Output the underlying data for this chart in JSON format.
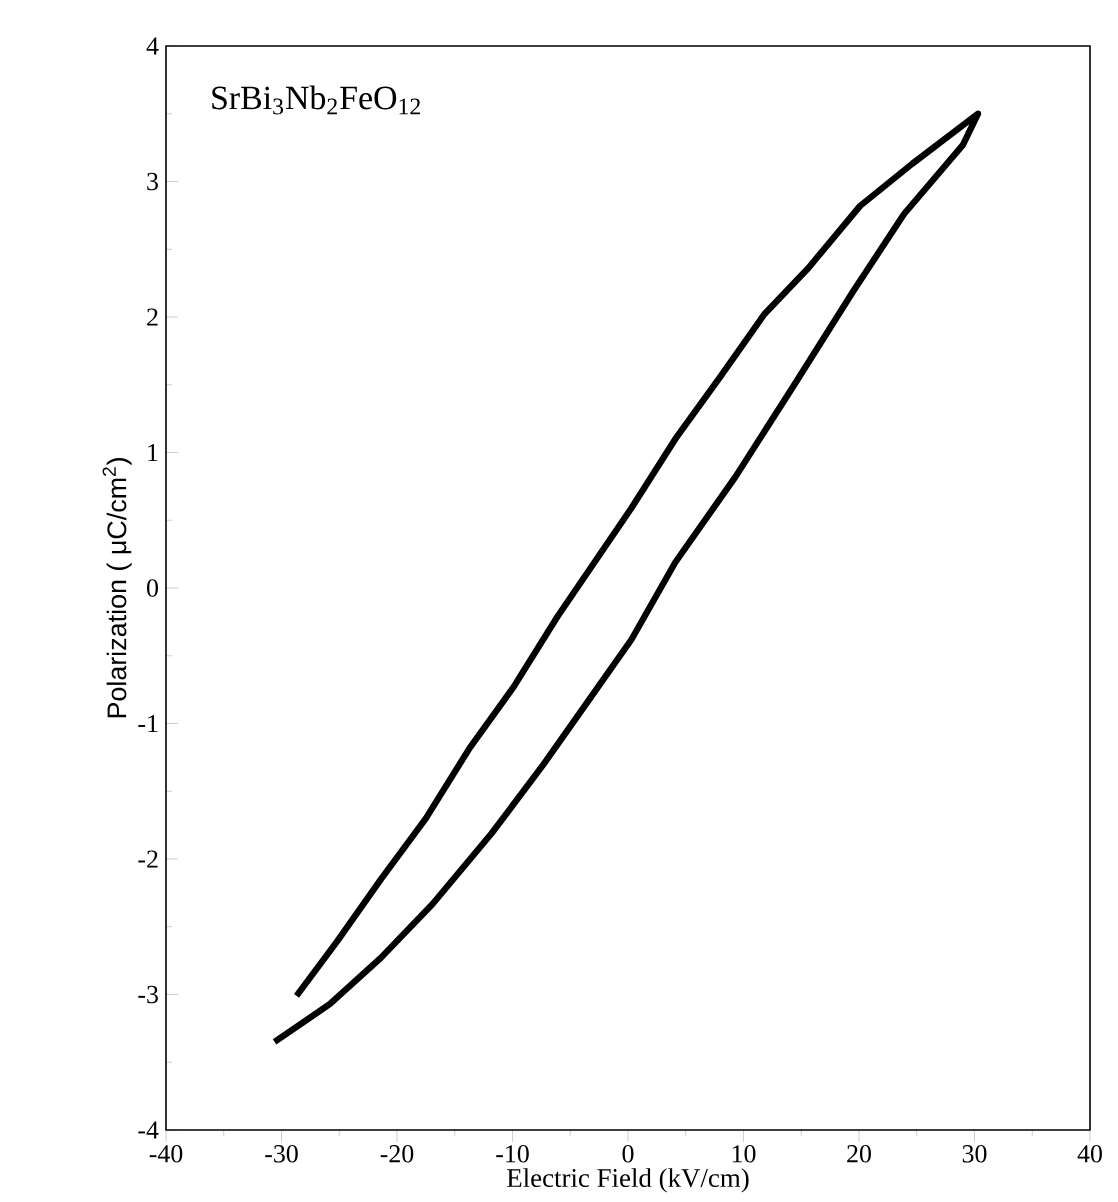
{
  "chart_data": {
    "type": "line",
    "xlabel": "Electric Field (kV/cm)",
    "ylabel": "Polarization ( μC/cm$^{2}$)",
    "annotations": [
      "SrBi$_{3}$Nb$_{2}$FeO$_{12}$"
    ],
    "series": [
      {
        "color": "#000000",
        "x": [
          -30.6,
          -25.8,
          -21.4,
          -16.9,
          -11.8,
          -7.3,
          -3.5,
          0.3,
          4.1,
          9.3,
          14.4,
          19.5,
          23.9,
          29.0,
          30.3,
          24.6,
          20.1,
          15.6,
          11.8,
          8.0,
          4.1,
          0.3,
          -2.9,
          -6.1,
          -9.9,
          -13.7,
          -17.5,
          -21.4,
          -25.2,
          -28.7
        ],
        "values": [
          -3.35,
          -3.07,
          -2.73,
          -2.33,
          -1.81,
          -1.3,
          -0.84,
          -0.38,
          0.19,
          0.82,
          1.5,
          2.19,
          2.76,
          3.27,
          3.5,
          3.13,
          2.82,
          2.36,
          2.02,
          1.56,
          1.1,
          0.59,
          0.19,
          -0.21,
          -0.73,
          -1.18,
          -1.7,
          -2.15,
          -2.61,
          -3.01
        ]
      }
    ],
    "xlim": [
      -40,
      40
    ],
    "xticks": [
      -40,
      -30,
      -20,
      -10,
      0,
      10,
      20,
      30,
      40
    ],
    "ylim": [
      -4,
      4
    ],
    "yticks": [
      -4,
      -3,
      -2,
      -1,
      0,
      1,
      2,
      3,
      4
    ],
    "grid": false,
    "marker": "none",
    "line_style": "solid"
  }
}
